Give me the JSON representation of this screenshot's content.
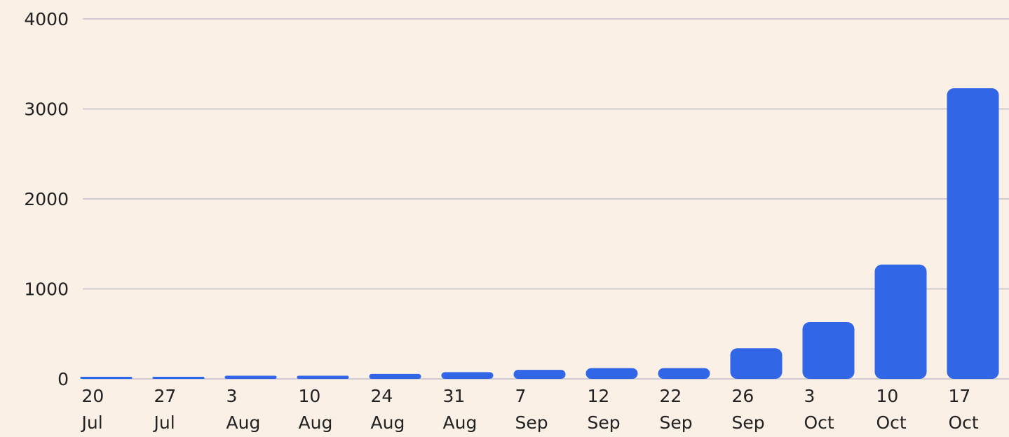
{
  "chart_data": {
    "type": "bar",
    "categories": [
      "20 Jul",
      "27 Jul",
      "3 Aug",
      "10 Aug",
      "24 Aug",
      "31 Aug",
      "7 Sep",
      "12 Sep",
      "22 Sep",
      "26 Sep",
      "3 Oct",
      "10 Oct",
      "17 Oct"
    ],
    "values": [
      10,
      12,
      35,
      35,
      55,
      75,
      100,
      120,
      120,
      340,
      630,
      1270,
      3230
    ],
    "color": "#3166e6",
    "ylim": [
      0,
      4000
    ],
    "yticks": [
      0,
      1000,
      2000,
      3000,
      4000
    ],
    "grid": true
  }
}
